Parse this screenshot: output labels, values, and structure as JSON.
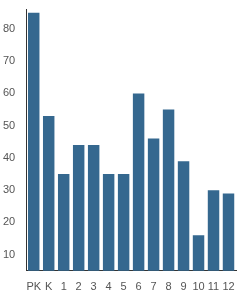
{
  "chart_data": {
    "type": "bar",
    "categories": [
      "PK",
      "K",
      "1",
      "2",
      "3",
      "4",
      "5",
      "6",
      "7",
      "8",
      "9",
      "10",
      "11",
      "12"
    ],
    "values": [
      85,
      53,
      35,
      44,
      44,
      35,
      35,
      60,
      46,
      55,
      39,
      16,
      30,
      29
    ],
    "color": "#35688f",
    "ylim": [
      5,
      86
    ],
    "yticks": [
      10,
      20,
      30,
      40,
      50,
      60,
      70,
      80
    ],
    "grid": false
  }
}
